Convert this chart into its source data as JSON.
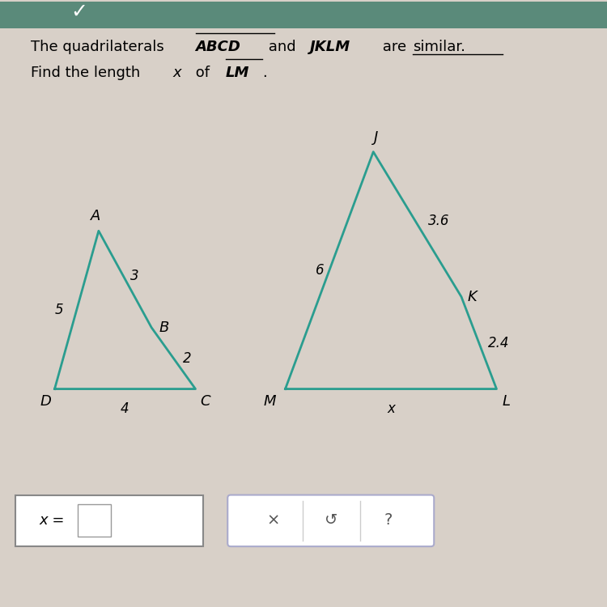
{
  "bg_color": "#d8d0c8",
  "header_color": "#5a8a7a",
  "shape1_color": "#2a9d8f",
  "shape2_color": "#2a9d8f",
  "shape1": {
    "D": [
      0.0,
      0.0
    ],
    "C": [
      1.6,
      0.0
    ],
    "B": [
      1.1,
      0.7
    ],
    "A": [
      0.5,
      1.8
    ],
    "scale": 1.45,
    "ox": 0.9,
    "oy": 3.6
  },
  "shape2": {
    "M": [
      0.0,
      0.0
    ],
    "L": [
      2.4,
      0.0
    ],
    "K": [
      2.0,
      1.05
    ],
    "J": [
      1.0,
      2.7
    ],
    "scale": 1.45,
    "ox": 4.7,
    "oy": 3.6
  }
}
